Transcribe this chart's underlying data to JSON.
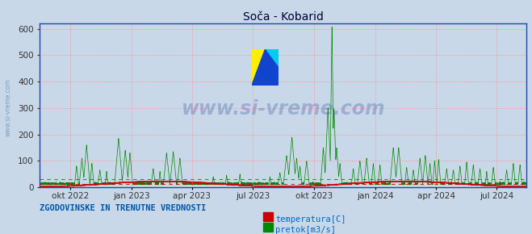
{
  "title": "Soča - Kobarid",
  "bg_color": "#c8d8e8",
  "plot_bg_color": "#c8d8e8",
  "grid_color": "#ff8888",
  "grid_linestyle": ":",
  "ylim": [
    0,
    620
  ],
  "yticks": [
    0,
    100,
    200,
    300,
    400,
    500,
    600
  ],
  "x_tick_labels": [
    "okt 2022",
    "jan 2023",
    "apr 2023",
    "jul 2023",
    "okt 2023",
    "jan 2024",
    "apr 2024",
    "jul 2024"
  ],
  "temp_color": "#cc0000",
  "flow_color": "#008800",
  "avg_flow_color": "#008800",
  "avg_temp_color": "#cc0000",
  "watermark_text": "www.si-vreme.com",
  "legend_text1": "temperatura[C]",
  "legend_text2": "pretok[m3/s]",
  "legend_color": "#0066cc",
  "bottom_label": "ZGODOVINSKE IN TRENUTNE VREDNOSTI",
  "bottom_label_color": "#0055aa",
  "title_color": "#000033",
  "figsize": [
    6.59,
    2.9
  ],
  "dpi": 100,
  "left_label": "www.si-vreme.com",
  "left_label_color": "#7799bb",
  "spine_color": "#2244aa",
  "tick_color": "#333333"
}
